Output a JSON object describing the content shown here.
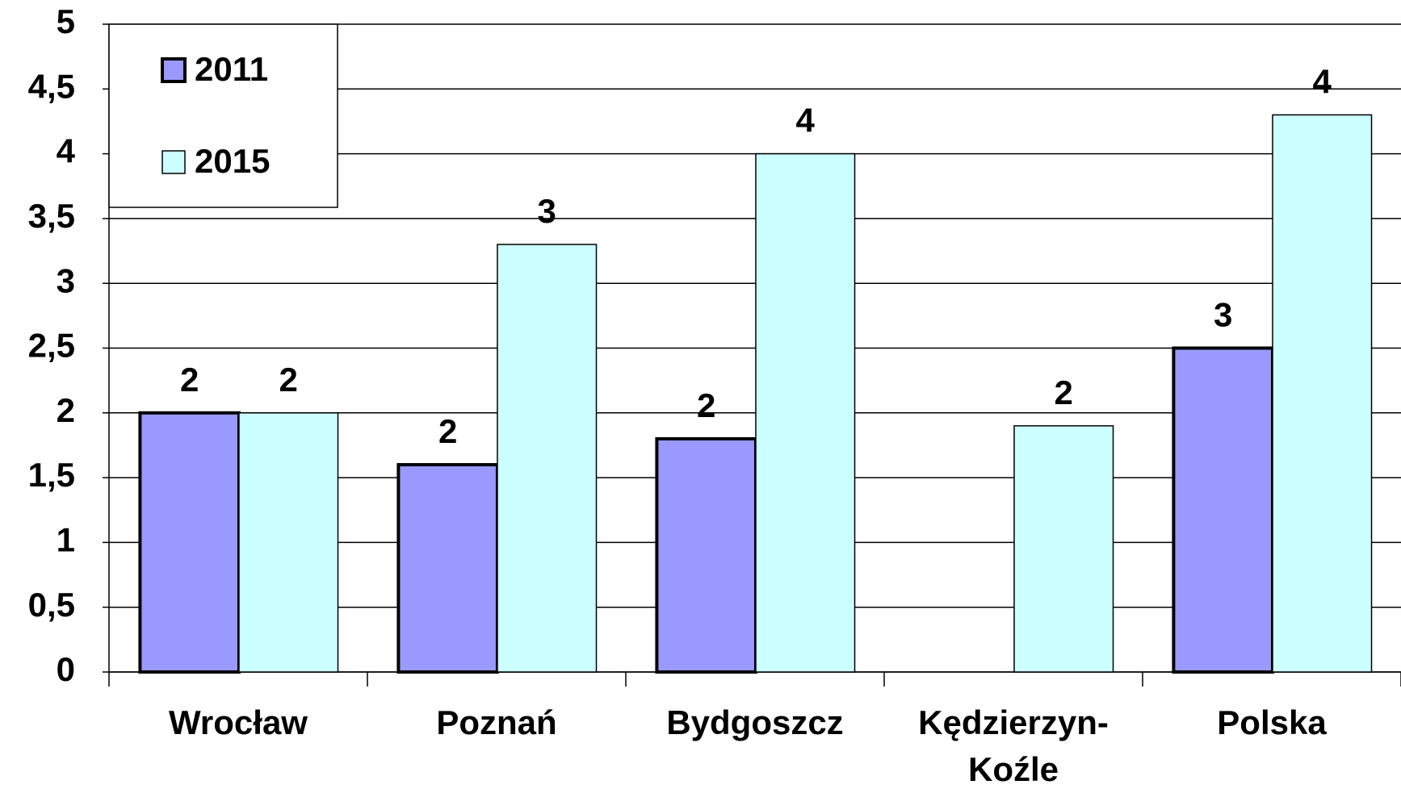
{
  "chart_data": {
    "type": "bar",
    "categories": [
      "Wrocław",
      "Poznań",
      "Bydgoszcz",
      "Kędzierzyn-Koźle",
      "Polska"
    ],
    "series": [
      {
        "name": "2011",
        "color": "#9999ff",
        "values": [
          2.0,
          1.6,
          1.8,
          null,
          2.5
        ],
        "value_labels": [
          "2",
          "2",
          "2",
          null,
          "3"
        ]
      },
      {
        "name": "2015",
        "color": "#ccffff",
        "values": [
          2.0,
          3.3,
          4.0,
          1.9,
          4.3
        ],
        "value_labels": [
          "2",
          "3",
          "4",
          "2",
          "4"
        ]
      }
    ],
    "ylim": [
      0,
      5
    ],
    "yticks": [
      0,
      {
        "value": 0.5,
        "label": "0,5"
      },
      1,
      {
        "value": 1.5,
        "label": "1,5"
      },
      2,
      {
        "value": 2.5,
        "label": "2,5"
      },
      3,
      {
        "value": 3.5,
        "label": "3,5"
      },
      4,
      {
        "value": 4.5,
        "label": "4,5"
      },
      5
    ],
    "grid": true,
    "legend": "upper left"
  }
}
